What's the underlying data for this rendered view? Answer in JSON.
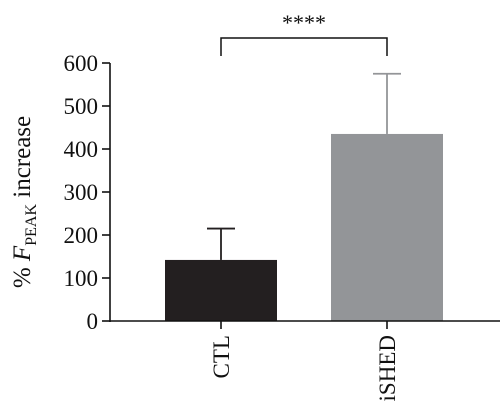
{
  "chart_data": {
    "type": "bar",
    "categories": [
      "CTL",
      "iSHED"
    ],
    "values": [
      142,
      435
    ],
    "error_upper": [
      215,
      575
    ],
    "colors": [
      "#231f20",
      "#939598"
    ],
    "ylim": [
      0,
      600
    ],
    "yticks": [
      0,
      100,
      200,
      300,
      400,
      500,
      600
    ],
    "ylabel": {
      "prefix": "% ",
      "variable": "F",
      "subscript": "PEAK",
      "suffix": " increase"
    },
    "significance": {
      "from": "CTL",
      "to": "iSHED",
      "label": "****"
    }
  }
}
